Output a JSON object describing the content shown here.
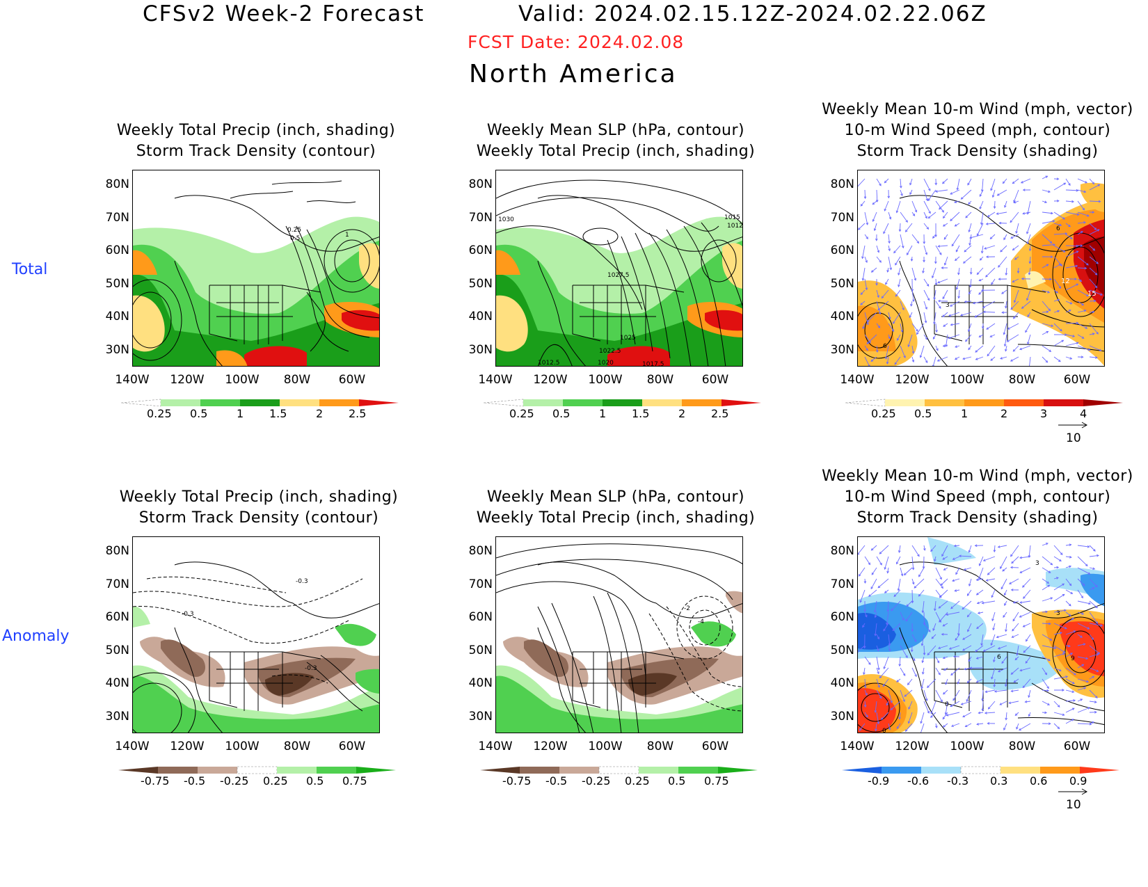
{
  "header": {
    "title": "CFSv2 Week-2 Forecast",
    "valid": "Valid: 2024.02.15.12Z-2024.02.22.06Z",
    "fcst_date": "FCST Date: 2024.02.08",
    "region": "North America"
  },
  "row_labels": {
    "total": "Total",
    "anomaly": "Anomaly"
  },
  "panels": {
    "p1": {
      "line1": "Weekly Total Precip (inch, shading)",
      "line2": "Storm Track Density (contour)"
    },
    "p2": {
      "line1": "Weekly Mean SLP (hPa, contour)",
      "line2": "Weekly Total Precip (inch, shading)"
    },
    "p3": {
      "line1": "Weekly Mean 10-m Wind (mph, vector)",
      "line2": "10-m Wind Speed (mph, contour)",
      "line3": "Storm Track Density (shading)"
    },
    "p4": {
      "line1": "Weekly Total Precip (inch, shading)",
      "line2": "Storm Track Density (contour)"
    },
    "p5": {
      "line1": "Weekly Mean SLP (hPa, contour)",
      "line2": "Weekly Total Precip (inch, shading)"
    },
    "p6": {
      "line1": "Weekly Mean 10-m Wind (mph, vector)",
      "line2": "10-m Wind Speed (mph, contour)",
      "line3": "Storm Track Density (shading)"
    }
  },
  "axes": {
    "lat": [
      "80N",
      "70N",
      "60N",
      "50N",
      "40N",
      "30N"
    ],
    "lon": [
      "140W",
      "120W",
      "100W",
      "80W",
      "60W"
    ]
  },
  "contour_labels": {
    "p1": [
      "0.25",
      "0.5",
      "1"
    ],
    "p2": [
      "1030",
      "1015",
      "1012",
      "1027.5",
      "1025",
      "1022.5",
      "1020",
      "1012.5",
      "1017.5"
    ],
    "p3": [
      "6",
      "12",
      "15",
      "6",
      "3"
    ],
    "p4": [
      "-0.3",
      "-0.3",
      "-0.3"
    ],
    "p5": [
      "-2",
      "-4"
    ],
    "p6": [
      "3",
      "3",
      "6",
      "9",
      "0",
      "0"
    ]
  },
  "colorbars": {
    "precip_total": {
      "labels": [
        "0.25",
        "0.5",
        "1",
        "1.5",
        "2",
        "2.5"
      ],
      "colors": [
        "#ffffff",
        "#b4f0a8",
        "#50d050",
        "#1a9e1a",
        "#ffe080",
        "#ff9a1a",
        "#e01010"
      ]
    },
    "storm_total": {
      "labels": [
        "0.25",
        "0.5",
        "1",
        "2",
        "3",
        "4"
      ],
      "colors": [
        "#ffffff",
        "#fff3b0",
        "#ffc040",
        "#ff9a1a",
        "#ff5a10",
        "#d81010",
        "#a00000"
      ]
    },
    "precip_anom": {
      "labels": [
        "-0.75",
        "-0.5",
        "-0.25",
        "0.25",
        "0.5",
        "0.75"
      ],
      "colors": [
        "#5a3826",
        "#8f6a58",
        "#c9a898",
        "#ffffff",
        "#b4f0a8",
        "#50d050",
        "#1aae1a"
      ]
    },
    "storm_anom": {
      "labels": [
        "-0.9",
        "-0.6",
        "-0.3",
        "0.3",
        "0.6",
        "0.9"
      ],
      "colors": [
        "#1a5fe0",
        "#3a9af0",
        "#a8e0f8",
        "#ffffff",
        "#ffe080",
        "#ff9a1a",
        "#ff3a1a"
      ]
    }
  },
  "wind_reference": {
    "value": "10"
  },
  "colors": {
    "fcst_date": "#ff2020",
    "row_label": "#1f3fff",
    "wind_vector": "#6a6aff"
  }
}
